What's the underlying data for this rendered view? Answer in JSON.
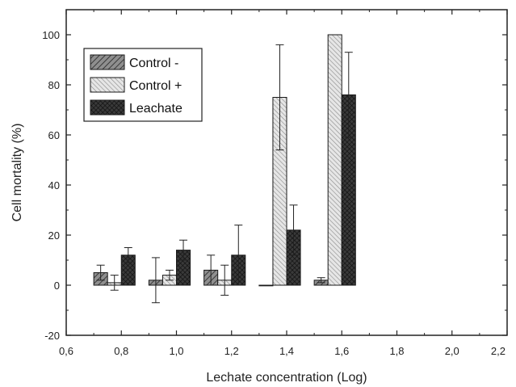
{
  "chart_data": {
    "type": "bar",
    "xlabel": "Lechate concentration (Log)",
    "ylabel": "Cell mortality (%)",
    "xlim": [
      0.6,
      2.2
    ],
    "ylim": [
      -20,
      110
    ],
    "xticks": [
      {
        "value": 0.6,
        "label": "0,6"
      },
      {
        "value": 0.8,
        "label": "0,8"
      },
      {
        "value": 1.0,
        "label": "1,0"
      },
      {
        "value": 1.2,
        "label": "1,2"
      },
      {
        "value": 1.4,
        "label": "1,4"
      },
      {
        "value": 1.6,
        "label": "1,6"
      },
      {
        "value": 1.8,
        "label": "1,8"
      },
      {
        "value": 2.0,
        "label": "2,0"
      },
      {
        "value": 2.2,
        "label": "2,2"
      }
    ],
    "yticks": [
      {
        "value": -20,
        "label": "-20"
      },
      {
        "value": 0,
        "label": "0"
      },
      {
        "value": 20,
        "label": "20"
      },
      {
        "value": 40,
        "label": "40"
      },
      {
        "value": 60,
        "label": "60"
      },
      {
        "value": 80,
        "label": "80"
      },
      {
        "value": 100,
        "label": "100"
      }
    ],
    "bar_width": 0.05,
    "legend_position": "top-left",
    "grid": false,
    "series": [
      {
        "name": "Control -",
        "pattern": "medium-hatch",
        "x": [
          0.725,
          0.925,
          1.125,
          1.325,
          1.525
        ],
        "values": [
          5,
          2,
          6,
          0,
          2
        ],
        "errors": [
          3,
          9,
          6,
          0,
          1
        ]
      },
      {
        "name": "Control +",
        "pattern": "light-hatch",
        "x": [
          0.775,
          0.975,
          1.175,
          1.375,
          1.575
        ],
        "values": [
          1,
          4,
          2,
          75,
          100
        ],
        "errors": [
          3,
          2,
          6,
          21,
          0
        ]
      },
      {
        "name": "Leachate",
        "pattern": "dark-crosshatch",
        "x": [
          0.825,
          1.025,
          1.225,
          1.425,
          1.625
        ],
        "values": [
          12,
          14,
          12,
          22,
          76
        ],
        "errors": [
          3,
          4,
          12,
          10,
          17
        ]
      }
    ]
  }
}
